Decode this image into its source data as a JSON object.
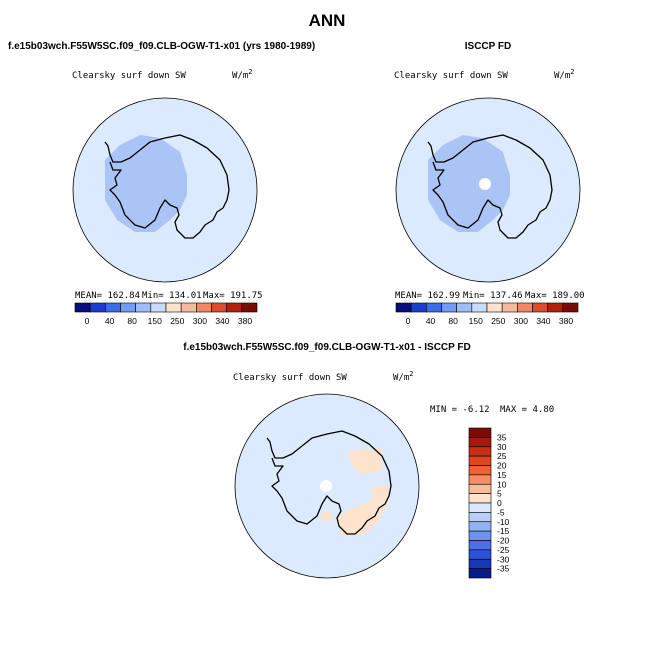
{
  "title": "ANN",
  "panels": [
    {
      "heading": "f.e15b03wch.F55W5SC.f09_f09.CLB-OGW-T1-x01 (yrs 1980-1989)",
      "variable": "Clearsky surf down SW",
      "units": {
        "base": "W/m",
        "exponent": "2"
      },
      "stats": {
        "mean": "MEAN= 162.84",
        "min": "Min= 134.01",
        "max": "Max= 191.75"
      },
      "colorbar_labels": [
        "0",
        "40",
        "80",
        "150",
        "250",
        "300",
        "340",
        "380"
      ]
    },
    {
      "heading": "ISCCP FD",
      "variable": "Clearsky surf down SW",
      "units": {
        "base": "W/m",
        "exponent": "2"
      },
      "stats": {
        "mean": "MEAN= 162.99",
        "min": "Min= 137.46",
        "max": "Max= 189.00"
      },
      "colorbar_labels": [
        "0",
        "40",
        "80",
        "150",
        "250",
        "300",
        "340",
        "380"
      ]
    }
  ],
  "difference": {
    "heading": "f.e15b03wch.F55W5SC.f09_f09.CLB-OGW-T1-x01 - ISCCP FD",
    "variable": "Clearsky surf down SW",
    "units": {
      "base": "W/m",
      "exponent": "2"
    },
    "stats": {
      "min": "MIN =  -6.12",
      "max": "MAX =   4.80"
    },
    "colorbar_labels": [
      "35",
      "30",
      "25",
      "20",
      "15",
      "10",
      "5",
      "0",
      "-5",
      "-10",
      "-15",
      "-20",
      "-25",
      "-30",
      "-35"
    ]
  }
}
